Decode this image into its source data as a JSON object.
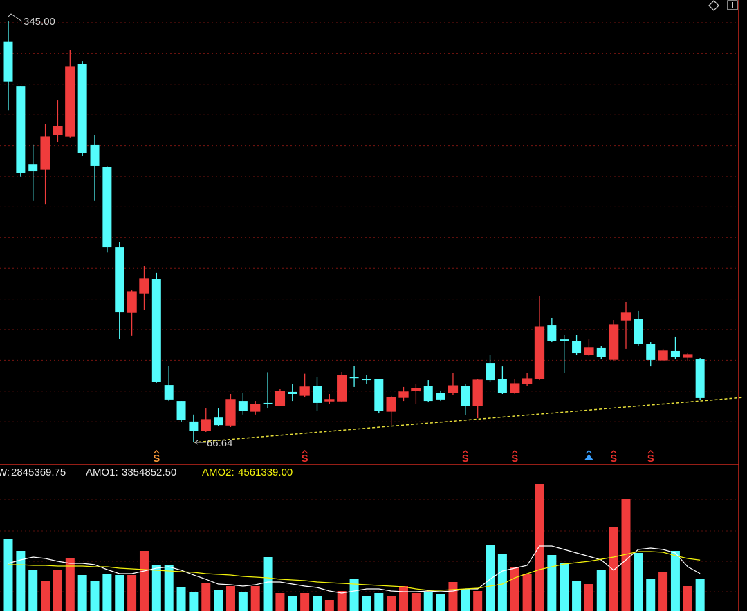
{
  "chart_data": [
    {
      "type": "candlestick",
      "up_color": "#f03c3c",
      "down_color": "#54fcfc",
      "open": [
        331,
        301.6,
        250,
        246.9,
        269.7,
        268.8,
        316.7,
        262.9,
        248.3,
        195.3,
        152.4,
        165.2,
        174.8,
        104.5,
        94,
        80.4,
        74.4,
        83,
        78,
        94,
        87.2,
        92.7,
        90.8,
        100,
        97.7,
        104,
        94,
        94,
        110,
        108.6,
        108.2,
        87.2,
        96.3,
        100.9,
        104,
        99.5,
        99.5,
        104,
        90.8,
        119.1,
        108.6,
        99.5,
        105.4,
        108.6,
        144.2,
        134.6,
        133.7,
        124.6,
        129.2,
        121.4,
        147.4,
        147.9,
        131.5,
        121,
        126.9,
        122.8,
        121.4
      ],
      "high": [
        345,
        301.6,
        263,
        276.6,
        292.5,
        325.4,
        318.5,
        269.7,
        249,
        199,
        167,
        183,
        178.5,
        117,
        94,
        85,
        89,
        89,
        98.6,
        99.5,
        94,
        113,
        101.8,
        105,
        112,
        110,
        98.6,
        113.2,
        117,
        111,
        108.6,
        97.3,
        103.2,
        105.4,
        107.7,
        100.9,
        112.3,
        105.4,
        108.6,
        124.6,
        116.8,
        108.6,
        112.3,
        163.4,
        148.8,
        137.4,
        137.4,
        135.1,
        130.5,
        147.4,
        159.3,
        153.4,
        132.8,
        128.3,
        136.5,
        126,
        122.3
      ],
      "low": [
        286,
        242,
        226,
        224,
        265,
        268,
        256,
        226,
        192,
        135,
        137,
        154,
        106,
        94,
        80,
        66.64,
        73.5,
        77.6,
        76.7,
        85,
        85,
        89,
        90.4,
        94,
        96.3,
        87.2,
        91.8,
        93.1,
        103.2,
        105,
        85.8,
        78,
        94,
        91.8,
        93.1,
        94,
        97.7,
        84.9,
        82.6,
        106.8,
        98.6,
        98.6,
        104,
        107.7,
        132.8,
        112.3,
        124.6,
        123.7,
        121.4,
        120,
        128.3,
        130.5,
        116.8,
        120.5,
        121.4,
        120.5,
        94.9
      ],
      "close": [
        305,
        244.6,
        245.5,
        268.3,
        275.2,
        314.4,
        257.4,
        249.2,
        195.3,
        152.4,
        166.1,
        174.8,
        106.4,
        95,
        81.3,
        74.4,
        81.7,
        78,
        95,
        87.2,
        91.8,
        91.8,
        100.4,
        98.6,
        103.2,
        92.7,
        95,
        110.9,
        109,
        107.7,
        87.2,
        96.3,
        100,
        102.3,
        94,
        95,
        104,
        90.8,
        107.7,
        107.7,
        99.5,
        105.4,
        108.6,
        142.8,
        133.7,
        133.7,
        125.5,
        129.2,
        122.8,
        144.2,
        152,
        131.5,
        121,
        126.9,
        122.8,
        124.6,
        95.9
      ],
      "ylim": [
        52.97,
        358.69
      ],
      "grid": true,
      "high_label": {
        "value": 345,
        "label": "345.00"
      },
      "low_label": {
        "value": 66.64,
        "label": "66.64"
      },
      "signals": [
        {
          "index": 12,
          "label": "S",
          "color": "#f5973a"
        },
        {
          "index": 24,
          "label": "S",
          "color": "#e8302c"
        },
        {
          "index": 37,
          "label": "S",
          "color": "#e8302c"
        },
        {
          "index": 41,
          "label": "S",
          "color": "#e8302c"
        },
        {
          "index": 47,
          "color": "#3aa0ff"
        },
        {
          "index": 49,
          "label": "S",
          "color": "#e8302c"
        },
        {
          "index": 52,
          "label": "S",
          "color": "#e8302c"
        }
      ]
    },
    {
      "type": "bar",
      "name": "W:",
      "current_label": "2845369.75",
      "values": [
        6433000,
        5381500,
        3649500,
        2721700,
        3649500,
        4701100,
        3216500,
        2721700,
        3340200,
        3216500,
        3216500,
        5381500,
        4144400,
        4144400,
        2103100,
        1732000,
        2536100,
        1917500,
        2226800,
        1732000,
        2226800,
        4824800,
        1608300,
        1360800,
        1608300,
        1360800,
        989700,
        1793800,
        2845400,
        1360800,
        1608300,
        1360800,
        2226800,
        1608300,
        1732000,
        1484500,
        2598000,
        1979400,
        1793800,
        5938200,
        5072200,
        3958800,
        3340200,
        11381500,
        5010300,
        4268100,
        2721700,
        2412400,
        3649500,
        7546400,
        10020700,
        5195900,
        2845400,
        3463900,
        5381500,
        2226800,
        2845369.75
      ],
      "ylim": [
        0,
        13113472
      ],
      "series": [
        {
          "name": "AMO1:",
          "color": "#ffffff",
          "current_label": "3354852.50",
          "values": [
            4268000,
            4577000,
            4825000,
            4701000,
            4454000,
            4268000,
            4268000,
            4144000,
            3711000,
            3340000,
            3340000,
            3588000,
            3835000,
            3959000,
            3650000,
            3217000,
            2845000,
            2412000,
            2351000,
            2227000,
            2351000,
            2598000,
            2598000,
            2412000,
            2227000,
            2103000,
            1794000,
            1608000,
            1794000,
            1979000,
            1979000,
            1794000,
            1732000,
            1732000,
            1794000,
            1732000,
            1794000,
            1979000,
            1979000,
            2845000,
            3588000,
            3835000,
            4083000,
            5814000,
            5814000,
            5505000,
            5196000,
            4887000,
            4577000,
            3650000,
            4577000,
            5505000,
            5629000,
            5505000,
            5196000,
            3959000,
            3354852.5
          ]
        },
        {
          "name": "AMO2:",
          "color": "#f2f20c",
          "current_label": "4561339.00",
          "values": [
            4144000,
            4144000,
            4083000,
            4083000,
            4021000,
            4021000,
            4021000,
            3959000,
            3959000,
            3835000,
            3773000,
            3711000,
            3650000,
            3588000,
            3526000,
            3464000,
            3340000,
            3278000,
            3217000,
            3093000,
            3031000,
            2969000,
            2845000,
            2784000,
            2722000,
            2598000,
            2536000,
            2474000,
            2412000,
            2351000,
            2289000,
            2227000,
            2165000,
            1979000,
            1856000,
            1856000,
            1918000,
            1979000,
            2041000,
            2227000,
            2412000,
            2969000,
            3340000,
            3711000,
            3959000,
            4206000,
            4330000,
            4454000,
            4639000,
            4825000,
            5072000,
            5320000,
            5320000,
            5258000,
            4948000,
            4701000,
            4561339
          ]
        }
      ]
    }
  ]
}
